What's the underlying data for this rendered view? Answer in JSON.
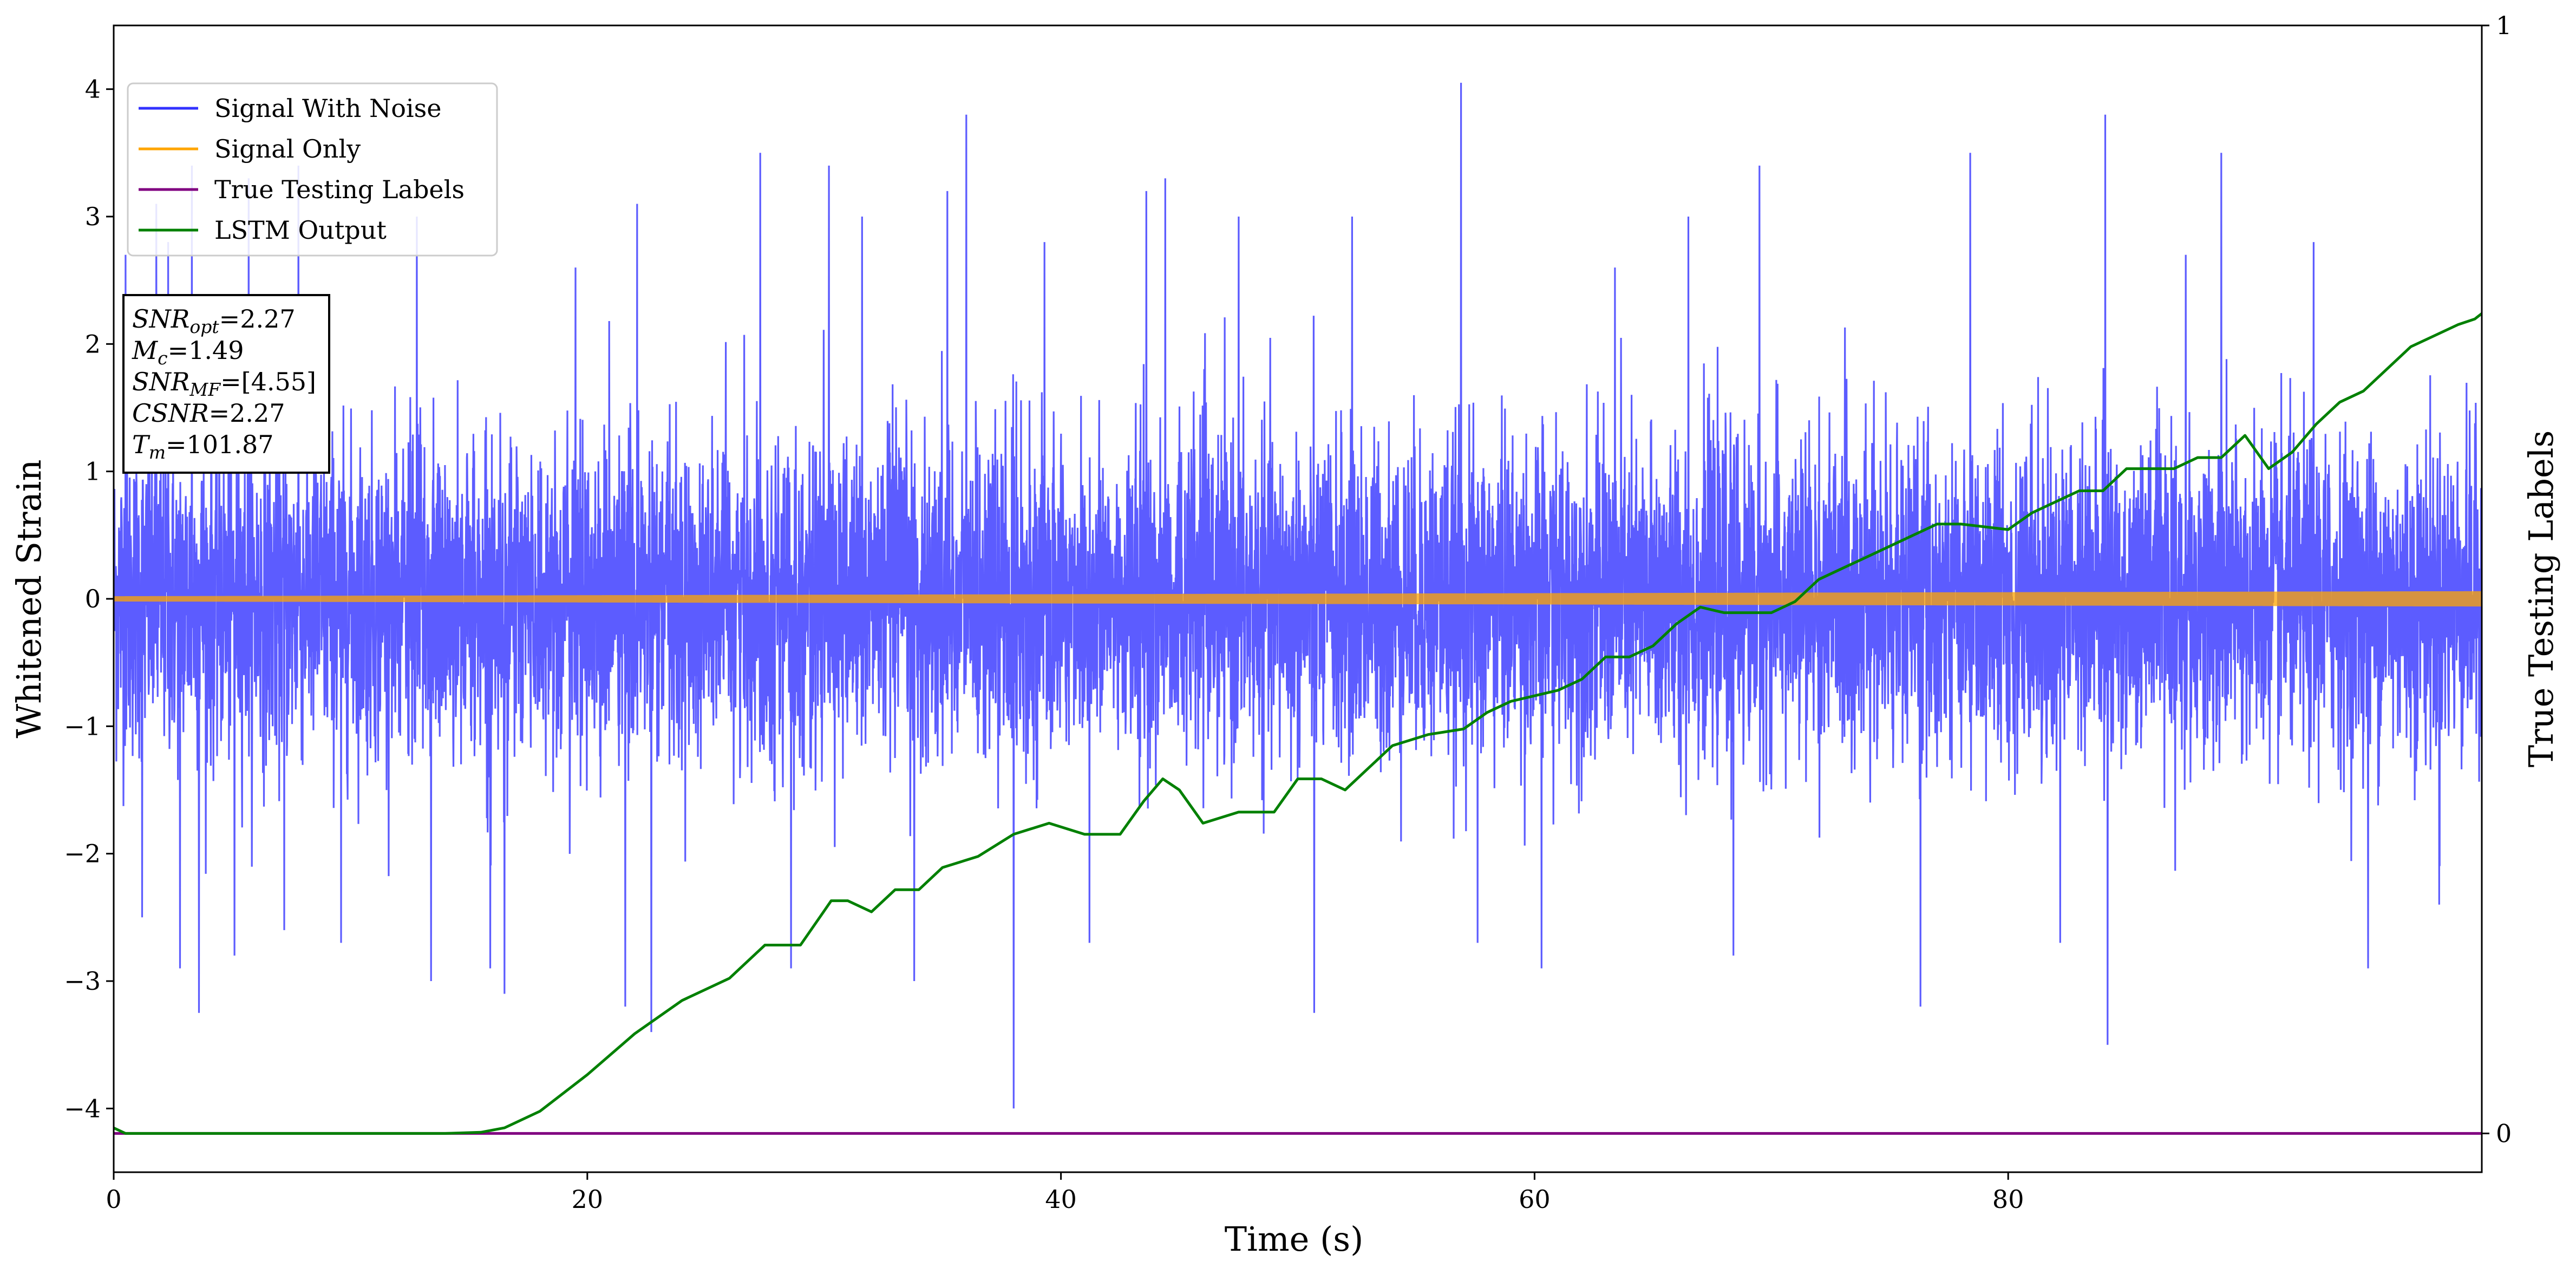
{
  "chart_data": {
    "type": "line",
    "xlabel": "Time (s)",
    "ylabel": "Whitened Strain",
    "y2label": "True Testing Labels",
    "xlim": [
      0,
      100
    ],
    "ylim": [
      -4.5,
      4.5
    ],
    "y2lim": [
      -0.035,
      1.0
    ],
    "xticks": [
      0,
      20,
      40,
      60,
      80
    ],
    "yticks": [
      -4,
      -3,
      -2,
      -1,
      0,
      1,
      2,
      3,
      4
    ],
    "y2ticks": [
      0,
      1
    ],
    "grid": false,
    "legend": "top-left",
    "series": [
      {
        "name": "Signal With Noise",
        "color": "#3333ff",
        "axis": "left",
        "description_values": "dense noise, mostly between -2 and 2",
        "spikes": [
          {
            "x": 0.5,
            "y": 2.7
          },
          {
            "x": 1.2,
            "y": -2.5
          },
          {
            "x": 1.8,
            "y": 3.1
          },
          {
            "x": 2.3,
            "y": 2.8
          },
          {
            "x": 2.8,
            "y": -2.9
          },
          {
            "x": 3.3,
            "y": 3.4
          },
          {
            "x": 3.6,
            "y": -3.25
          },
          {
            "x": 5.1,
            "y": -2.8
          },
          {
            "x": 5.7,
            "y": 3.3
          },
          {
            "x": 7.2,
            "y": -2.6
          },
          {
            "x": 7.8,
            "y": 3.4
          },
          {
            "x": 9.6,
            "y": -2.7
          },
          {
            "x": 12.8,
            "y": 3.0
          },
          {
            "x": 13.4,
            "y": -3.0
          },
          {
            "x": 15.9,
            "y": -2.9
          },
          {
            "x": 16.5,
            "y": -3.1
          },
          {
            "x": 19.5,
            "y": 2.6
          },
          {
            "x": 21.6,
            "y": -3.2
          },
          {
            "x": 22.1,
            "y": 3.1
          },
          {
            "x": 22.7,
            "y": -3.4
          },
          {
            "x": 27.3,
            "y": 3.5
          },
          {
            "x": 28.6,
            "y": -2.9
          },
          {
            "x": 30.2,
            "y": 3.4
          },
          {
            "x": 31.6,
            "y": 3.0
          },
          {
            "x": 33.8,
            "y": -3.0
          },
          {
            "x": 35.2,
            "y": 3.2
          },
          {
            "x": 36.0,
            "y": 3.8
          },
          {
            "x": 38.0,
            "y": -4.0
          },
          {
            "x": 39.3,
            "y": 2.8
          },
          {
            "x": 41.2,
            "y": -2.7
          },
          {
            "x": 43.6,
            "y": 3.2
          },
          {
            "x": 44.4,
            "y": 3.3
          },
          {
            "x": 47.5,
            "y": 3.0
          },
          {
            "x": 50.7,
            "y": -3.25
          },
          {
            "x": 52.3,
            "y": 3.0
          },
          {
            "x": 56.9,
            "y": 4.05
          },
          {
            "x": 57.6,
            "y": -2.7
          },
          {
            "x": 60.3,
            "y": -2.9
          },
          {
            "x": 63.4,
            "y": 2.6
          },
          {
            "x": 66.5,
            "y": 3.0
          },
          {
            "x": 68.4,
            "y": -2.8
          },
          {
            "x": 69.5,
            "y": 3.4
          },
          {
            "x": 76.3,
            "y": -3.2
          },
          {
            "x": 78.4,
            "y": 3.5
          },
          {
            "x": 82.2,
            "y": -2.7
          },
          {
            "x": 84.1,
            "y": 3.8
          },
          {
            "x": 84.2,
            "y": -3.5
          },
          {
            "x": 87.5,
            "y": 2.7
          },
          {
            "x": 89.0,
            "y": 3.5
          },
          {
            "x": 92.9,
            "y": 2.8
          },
          {
            "x": 95.2,
            "y": -2.9
          },
          {
            "x": 98.2,
            "y": -2.4
          }
        ]
      },
      {
        "name": "Signal Only",
        "color": "#ffa500",
        "axis": "left",
        "values_description": "thin oscillation around 0, amplitude growing slightly toward the end",
        "amplitude_start": 0.02,
        "amplitude_end": 0.06
      },
      {
        "name": "True Testing Labels",
        "color": "#800080",
        "axis": "right",
        "x": [
          0,
          100
        ],
        "y": [
          0,
          0
        ]
      },
      {
        "name": "LSTM Output",
        "color": "#008000",
        "axis": "right",
        "x": [
          0,
          0.5,
          1,
          5,
          10,
          14,
          15.5,
          16.5,
          18,
          20,
          22,
          24,
          26,
          27.5,
          29,
          30.3,
          31,
          32,
          33,
          34,
          35,
          36.5,
          38,
          39.5,
          41,
          42.5,
          43.5,
          44.3,
          45,
          46,
          47.5,
          49,
          50,
          51,
          52,
          53,
          54,
          55.5,
          57,
          58,
          59,
          61,
          62,
          63,
          64,
          65,
          66,
          67,
          68,
          70,
          71,
          72,
          73,
          74,
          75,
          76,
          77,
          78,
          80,
          81,
          82,
          83,
          84,
          85,
          86,
          87,
          88,
          89,
          90,
          91,
          92,
          93,
          94,
          95,
          96,
          97,
          98,
          99,
          99.7,
          100
        ],
        "y": [
          0.005,
          0.0,
          0.0,
          0.0,
          0.0,
          0.0,
          0.001,
          0.005,
          0.02,
          0.053,
          0.09,
          0.12,
          0.14,
          0.17,
          0.17,
          0.21,
          0.21,
          0.2,
          0.22,
          0.22,
          0.24,
          0.25,
          0.27,
          0.28,
          0.27,
          0.27,
          0.3,
          0.32,
          0.31,
          0.28,
          0.29,
          0.29,
          0.32,
          0.32,
          0.31,
          0.33,
          0.35,
          0.36,
          0.365,
          0.38,
          0.39,
          0.4,
          0.41,
          0.43,
          0.43,
          0.44,
          0.46,
          0.475,
          0.47,
          0.47,
          0.48,
          0.5,
          0.51,
          0.52,
          0.53,
          0.54,
          0.55,
          0.55,
          0.545,
          0.56,
          0.57,
          0.58,
          0.58,
          0.6,
          0.6,
          0.6,
          0.61,
          0.61,
          0.63,
          0.6,
          0.615,
          0.64,
          0.66,
          0.67,
          0.69,
          0.71,
          0.72,
          0.73,
          0.735,
          0.74
        ]
      }
    ],
    "annotation": [
      {
        "base": "SNR",
        "sub": "opt",
        "value": "=2.27"
      },
      {
        "base": "M",
        "sub": "c",
        "value": "=1.49"
      },
      {
        "base": "SNR",
        "sub": "MF",
        "value": "=[4.55]"
      },
      {
        "base": "CSNR",
        "sub": "",
        "value": "=2.27"
      },
      {
        "base": "T",
        "sub": "m",
        "value": "=101.87"
      }
    ]
  }
}
